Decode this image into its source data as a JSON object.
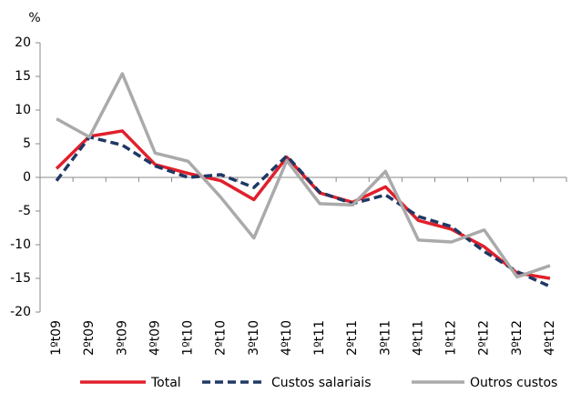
{
  "chart_data": {
    "type": "line",
    "y_unit_label": "%",
    "categories": [
      "1ºt09",
      "2ºt09",
      "3ºt09",
      "4ºt09",
      "1ºt10",
      "2ºt10",
      "3ºt10",
      "4ºt10",
      "1ºt11",
      "2ºt11",
      "3ºt11",
      "4ºt11",
      "1ºt12",
      "2ºt12",
      "3ºt12",
      "4ºt12"
    ],
    "series": [
      {
        "name": "Total",
        "color": "#e0202b",
        "dash": false,
        "values": [
          1.3,
          6.1,
          6.9,
          1.9,
          0.6,
          -0.5,
          -3.3,
          3.0,
          -2.3,
          -3.7,
          -1.4,
          -6.4,
          -7.7,
          -10.3,
          -14.2,
          -15.0
        ]
      },
      {
        "name": "Custos salariais",
        "color": "#1f3864",
        "dash": true,
        "values": [
          -0.5,
          6.0,
          4.8,
          1.7,
          0.0,
          0.4,
          -1.5,
          3.2,
          -2.2,
          -3.9,
          -2.6,
          -5.8,
          -7.3,
          -11.0,
          -14.0,
          -16.2
        ]
      },
      {
        "name": "Outros custos",
        "color": "#aaaaaa",
        "dash": false,
        "values": [
          8.7,
          6.0,
          15.4,
          3.6,
          2.4,
          -3.0,
          -9.0,
          2.5,
          -3.9,
          -4.1,
          0.9,
          -9.3,
          -9.6,
          -7.8,
          -14.8,
          -13.1
        ]
      }
    ],
    "ylim": [
      -20,
      20
    ],
    "yticks": [
      -20,
      -15,
      -10,
      -5,
      0,
      5,
      10,
      15,
      20
    ],
    "grid": false
  }
}
